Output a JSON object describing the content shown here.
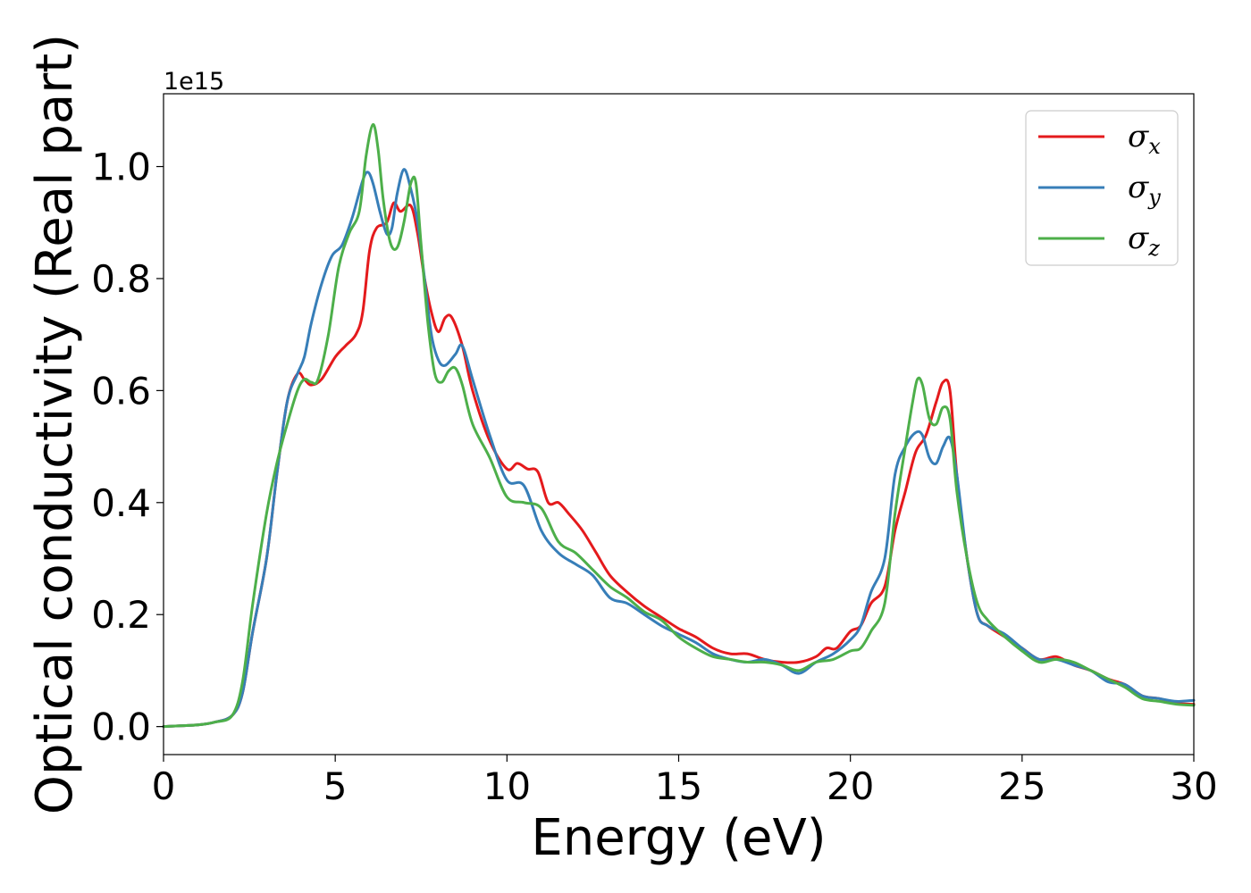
{
  "chart_data": {
    "type": "line",
    "title": "",
    "xlabel": "Energy (eV)",
    "ylabel": "Optical conductivity (Real part)",
    "y_offset_label": "1e15",
    "xlim": [
      0,
      30
    ],
    "ylim": [
      -0.05,
      1.13
    ],
    "xticks": [
      0,
      5,
      10,
      15,
      20,
      25,
      30
    ],
    "xtick_labels": [
      "0",
      "5",
      "10",
      "15",
      "20",
      "25",
      "30"
    ],
    "yticks": [
      0.0,
      0.2,
      0.4,
      0.6,
      0.8,
      1.0
    ],
    "ytick_labels": [
      "0.0",
      "0.2",
      "0.4",
      "0.6",
      "0.8",
      "1.0"
    ],
    "grid": false,
    "legend_position": "top-right",
    "series": [
      {
        "name": "σ",
        "subscript": "x",
        "color": "#e41a1c",
        "x": [
          0,
          1,
          1.5,
          2,
          2.3,
          2.6,
          3,
          3.3,
          3.6,
          3.9,
          4.1,
          4.3,
          4.6,
          5,
          5.3,
          5.6,
          5.8,
          6,
          6.2,
          6.5,
          6.7,
          6.9,
          7.2,
          7.4,
          7.6,
          7.8,
          8.0,
          8.2,
          8.4,
          8.7,
          9,
          9.5,
          10,
          10.3,
          10.6,
          10.9,
          11.2,
          11.5,
          11.8,
          12.2,
          12.6,
          13,
          13.5,
          14,
          14.5,
          15,
          15.5,
          16,
          16.5,
          17,
          17.5,
          18,
          18.5,
          19,
          19.3,
          19.6,
          20,
          20.3,
          20.6,
          21,
          21.3,
          21.6,
          21.9,
          22.2,
          22.5,
          22.7,
          22.9,
          23.1,
          23.4,
          23.7,
          24,
          24.5,
          25,
          25.5,
          26,
          26.5,
          27,
          27.5,
          28,
          28.5,
          29,
          29.5,
          30
        ],
        "y": [
          0,
          0.003,
          0.008,
          0.02,
          0.06,
          0.17,
          0.3,
          0.45,
          0.58,
          0.63,
          0.62,
          0.61,
          0.62,
          0.66,
          0.68,
          0.7,
          0.74,
          0.85,
          0.89,
          0.9,
          0.935,
          0.92,
          0.93,
          0.88,
          0.8,
          0.74,
          0.705,
          0.73,
          0.73,
          0.68,
          0.6,
          0.51,
          0.46,
          0.47,
          0.46,
          0.455,
          0.4,
          0.4,
          0.38,
          0.35,
          0.31,
          0.27,
          0.24,
          0.215,
          0.195,
          0.175,
          0.16,
          0.14,
          0.13,
          0.13,
          0.12,
          0.115,
          0.115,
          0.125,
          0.14,
          0.14,
          0.17,
          0.18,
          0.22,
          0.25,
          0.35,
          0.42,
          0.49,
          0.52,
          0.58,
          0.615,
          0.6,
          0.45,
          0.3,
          0.2,
          0.18,
          0.16,
          0.14,
          0.12,
          0.125,
          0.11,
          0.1,
          0.085,
          0.075,
          0.055,
          0.05,
          0.042,
          0.04
        ]
      },
      {
        "name": "σ",
        "subscript": "y",
        "color": "#377eb8",
        "x": [
          0,
          1,
          1.5,
          2,
          2.3,
          2.6,
          3,
          3.3,
          3.6,
          3.9,
          4.1,
          4.3,
          4.6,
          4.9,
          5.2,
          5.5,
          5.8,
          5.95,
          6.1,
          6.3,
          6.5,
          6.65,
          6.8,
          7.0,
          7.2,
          7.4,
          7.6,
          7.8,
          8.0,
          8.2,
          8.5,
          8.7,
          9.0,
          9.5,
          10,
          10.5,
          11,
          11.5,
          12,
          12.5,
          13,
          13.5,
          14,
          14.5,
          15,
          15.5,
          16,
          16.5,
          17,
          17.5,
          18,
          18.5,
          19,
          19.5,
          20,
          20.3,
          20.6,
          21,
          21.3,
          21.6,
          21.9,
          22.1,
          22.3,
          22.5,
          22.7,
          22.9,
          23.1,
          23.4,
          23.7,
          24,
          24.5,
          25,
          25.5,
          26,
          26.5,
          27,
          27.5,
          28,
          28.5,
          29,
          29.5,
          30
        ],
        "y": [
          0,
          0.003,
          0.008,
          0.02,
          0.06,
          0.17,
          0.3,
          0.45,
          0.58,
          0.63,
          0.66,
          0.72,
          0.79,
          0.84,
          0.86,
          0.91,
          0.975,
          0.99,
          0.97,
          0.92,
          0.88,
          0.89,
          0.95,
          0.995,
          0.96,
          0.9,
          0.8,
          0.7,
          0.655,
          0.645,
          0.665,
          0.68,
          0.62,
          0.52,
          0.44,
          0.43,
          0.35,
          0.31,
          0.29,
          0.27,
          0.23,
          0.22,
          0.2,
          0.18,
          0.165,
          0.15,
          0.13,
          0.12,
          0.115,
          0.12,
          0.11,
          0.095,
          0.115,
          0.13,
          0.155,
          0.18,
          0.24,
          0.3,
          0.45,
          0.5,
          0.525,
          0.52,
          0.48,
          0.47,
          0.5,
          0.515,
          0.45,
          0.3,
          0.2,
          0.18,
          0.165,
          0.14,
          0.12,
          0.12,
          0.11,
          0.1,
          0.08,
          0.075,
          0.055,
          0.05,
          0.045,
          0.047
        ]
      },
      {
        "name": "σ",
        "subscript": "z",
        "color": "#4daf4a",
        "x": [
          0,
          1,
          1.5,
          2,
          2.3,
          2.6,
          3,
          3.3,
          3.6,
          3.9,
          4.1,
          4.3,
          4.5,
          4.8,
          5.1,
          5.4,
          5.7,
          5.9,
          6.1,
          6.25,
          6.4,
          6.6,
          6.8,
          7.0,
          7.2,
          7.35,
          7.5,
          7.7,
          7.9,
          8.1,
          8.3,
          8.5,
          8.7,
          9,
          9.5,
          10,
          10.5,
          11,
          11.5,
          12,
          12.5,
          13,
          13.5,
          14,
          14.5,
          15,
          15.5,
          16,
          16.5,
          17,
          17.5,
          18,
          18.5,
          19,
          19.5,
          20,
          20.3,
          20.6,
          21,
          21.3,
          21.6,
          21.8,
          21.95,
          22.1,
          22.3,
          22.5,
          22.7,
          22.9,
          23.1,
          23.4,
          23.7,
          24,
          24.5,
          25,
          25.5,
          26,
          26.5,
          27,
          27.5,
          28,
          28.5,
          29,
          29.5,
          30
        ],
        "y": [
          0,
          0.003,
          0.008,
          0.02,
          0.08,
          0.22,
          0.38,
          0.47,
          0.54,
          0.6,
          0.62,
          0.615,
          0.62,
          0.7,
          0.82,
          0.88,
          0.92,
          1.02,
          1.075,
          1.03,
          0.94,
          0.865,
          0.855,
          0.9,
          0.97,
          0.97,
          0.86,
          0.72,
          0.63,
          0.615,
          0.635,
          0.64,
          0.61,
          0.54,
          0.48,
          0.41,
          0.4,
          0.39,
          0.33,
          0.31,
          0.28,
          0.25,
          0.23,
          0.205,
          0.19,
          0.16,
          0.14,
          0.125,
          0.12,
          0.115,
          0.115,
          0.11,
          0.1,
          0.115,
          0.12,
          0.135,
          0.14,
          0.17,
          0.22,
          0.38,
          0.5,
          0.575,
          0.62,
          0.61,
          0.55,
          0.54,
          0.57,
          0.55,
          0.42,
          0.3,
          0.22,
          0.19,
          0.16,
          0.135,
          0.115,
          0.12,
          0.115,
          0.1,
          0.085,
          0.07,
          0.05,
          0.045,
          0.04,
          0.038
        ]
      }
    ]
  }
}
